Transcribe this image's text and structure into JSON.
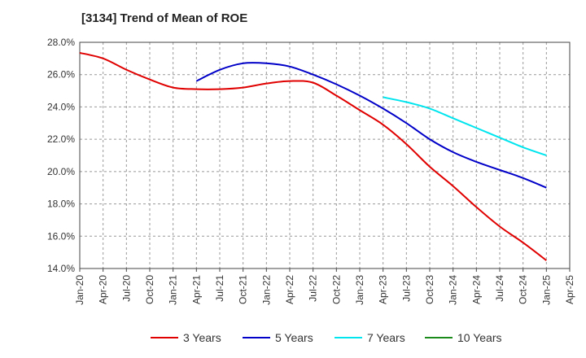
{
  "chart_data": {
    "type": "line",
    "title": "[3134]  Trend of Mean of ROE",
    "xlabel": "",
    "ylabel": "",
    "x": [
      "Jan-20",
      "Apr-20",
      "Jul-20",
      "Oct-20",
      "Jan-21",
      "Apr-21",
      "Jul-21",
      "Oct-21",
      "Jan-22",
      "Apr-22",
      "Jul-22",
      "Oct-22",
      "Jan-23",
      "Apr-23",
      "Jul-23",
      "Oct-23",
      "Jan-24",
      "Apr-24",
      "Jul-24",
      "Oct-24",
      "Jan-25",
      "Apr-25"
    ],
    "x_ticks": [
      "Jan-20",
      "Apr-20",
      "Jul-20",
      "Oct-20",
      "Jan-21",
      "Apr-21",
      "Jul-21",
      "Oct-21",
      "Jan-22",
      "Apr-22",
      "Jul-22",
      "Oct-22",
      "Jan-23",
      "Apr-23",
      "Jul-23",
      "Oct-23",
      "Jan-24",
      "Apr-24",
      "Jul-24",
      "Oct-24",
      "Jan-25",
      "Apr-25"
    ],
    "y_ticks": [
      "14.0%",
      "16.0%",
      "18.0%",
      "20.0%",
      "22.0%",
      "24.0%",
      "26.0%",
      "28.0%"
    ],
    "ylim": [
      14,
      28
    ],
    "grid": true,
    "legend_position": "bottom",
    "series": [
      {
        "name": "3 Years",
        "color": "#e00000",
        "values": [
          27.35,
          27.0,
          26.3,
          25.7,
          25.2,
          25.1,
          25.1,
          25.2,
          25.45,
          25.6,
          25.5,
          24.7,
          23.8,
          22.9,
          21.7,
          20.3,
          19.1,
          17.8,
          16.6,
          15.6,
          14.5,
          null
        ]
      },
      {
        "name": "5 Years",
        "color": "#0000c8",
        "values": [
          null,
          null,
          null,
          null,
          null,
          25.6,
          26.3,
          26.7,
          26.7,
          26.5,
          26.0,
          25.4,
          24.7,
          23.9,
          23.0,
          22.0,
          21.2,
          20.6,
          20.1,
          19.6,
          19.0,
          null
        ]
      },
      {
        "name": "7 Years",
        "color": "#00e5ee",
        "values": [
          null,
          null,
          null,
          null,
          null,
          null,
          null,
          null,
          null,
          null,
          null,
          null,
          null,
          24.6,
          24.3,
          23.9,
          23.3,
          22.7,
          22.1,
          21.5,
          21.0,
          null
        ]
      },
      {
        "name": "10 Years",
        "color": "#1a8a1a",
        "values": [
          null,
          null,
          null,
          null,
          null,
          null,
          null,
          null,
          null,
          null,
          null,
          null,
          null,
          null,
          null,
          null,
          null,
          null,
          null,
          null,
          null,
          null
        ]
      }
    ]
  }
}
